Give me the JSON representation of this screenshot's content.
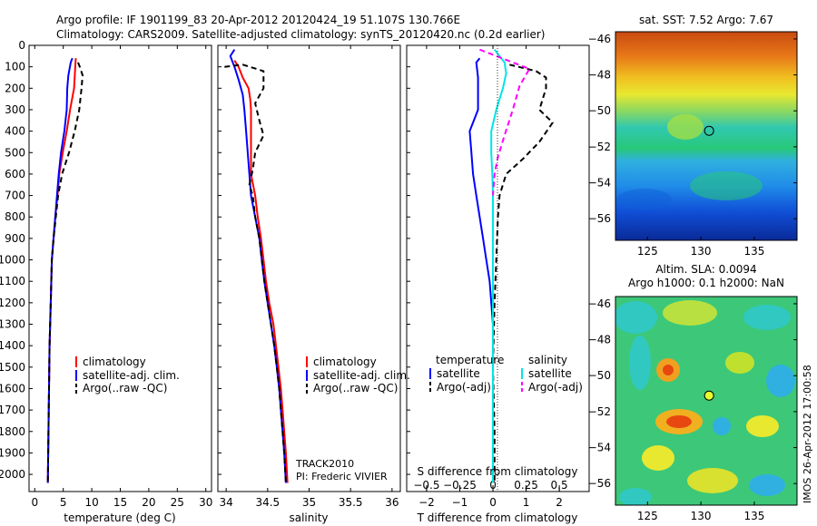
{
  "header": {
    "line1": "Argo profile: IF 1901199_83 20-Apr-2012 20120424_19 51.107S 130.766E",
    "line2": "Climatology: CARS2009. Satellite-adjusted climatology: synTS_20120420.nc (0.2d earlier)"
  },
  "colors": {
    "climatology": "#ff0000",
    "satellite": "#0000ff",
    "argo": "#000000",
    "sal_satellite": "#00e5e5",
    "sal_argo": "#ff00ff"
  },
  "chart_data": [
    {
      "type": "line",
      "xlabel": "temperature (deg C)",
      "ylabel": "",
      "xlim": [
        -1,
        31
      ],
      "ylim": [
        2080,
        0
      ],
      "xticks": [
        0,
        5,
        10,
        15,
        20,
        25,
        30
      ],
      "yticks": [
        0,
        100,
        200,
        300,
        400,
        500,
        600,
        700,
        800,
        900,
        1000,
        1100,
        1200,
        1300,
        1400,
        1500,
        1600,
        1700,
        1800,
        1900,
        2000
      ],
      "legend": [
        "climatology",
        "satellite-adj. clim.",
        "Argo(..raw -QC)"
      ],
      "series": [
        {
          "name": "climatology",
          "color": "#ff0000",
          "style": "solid",
          "points": [
            [
              7.2,
              60
            ],
            [
              7.1,
              100
            ],
            [
              6.9,
              200
            ],
            [
              6.2,
              300
            ],
            [
              5.6,
              400
            ],
            [
              4.9,
              500
            ],
            [
              4.3,
              600
            ],
            [
              4.0,
              700
            ],
            [
              3.6,
              800
            ],
            [
              3.3,
              900
            ],
            [
              3.0,
              1000
            ],
            [
              2.8,
              1200
            ],
            [
              2.6,
              1400
            ],
            [
              2.5,
              1600
            ],
            [
              2.4,
              1800
            ],
            [
              2.3,
              2040
            ]
          ]
        },
        {
          "name": "satellite-adj. clim.",
          "color": "#0000ff",
          "style": "solid",
          "points": [
            [
              6.6,
              60
            ],
            [
              6.3,
              80
            ],
            [
              5.9,
              140
            ],
            [
              5.7,
              200
            ],
            [
              5.6,
              300
            ],
            [
              5.2,
              400
            ],
            [
              4.6,
              500
            ],
            [
              4.2,
              600
            ],
            [
              3.9,
              700
            ],
            [
              3.6,
              800
            ],
            [
              3.3,
              900
            ],
            [
              3.0,
              1000
            ],
            [
              2.8,
              1200
            ],
            [
              2.6,
              1400
            ],
            [
              2.5,
              1600
            ],
            [
              2.4,
              1800
            ],
            [
              2.3,
              2040
            ]
          ]
        },
        {
          "name": "Argo(..raw -QC)",
          "color": "#000000",
          "style": "dash",
          "points": [
            [
              7.6,
              80
            ],
            [
              7.9,
              100
            ],
            [
              8.4,
              140
            ],
            [
              8.2,
              200
            ],
            [
              7.8,
              300
            ],
            [
              7.0,
              400
            ],
            [
              6.0,
              500
            ],
            [
              4.8,
              600
            ],
            [
              4.1,
              700
            ],
            [
              3.7,
              800
            ],
            [
              3.3,
              900
            ],
            [
              3.0,
              1000
            ],
            [
              2.8,
              1200
            ],
            [
              2.6,
              1400
            ],
            [
              2.5,
              1600
            ],
            [
              2.4,
              1800
            ],
            [
              2.3,
              2040
            ]
          ]
        }
      ]
    },
    {
      "type": "line",
      "xlabel": "salinity",
      "ylabel": "",
      "xlim": [
        33.9,
        36.1
      ],
      "ylim": [
        2080,
        0
      ],
      "xticks": [
        34,
        34.5,
        35,
        35.5,
        36
      ],
      "xticklabels": [
        "34",
        "34.5",
        "35",
        "35.5",
        "36"
      ],
      "legend": [
        "climatology",
        "satellite-adj. clim.",
        "Argo(..raw -QC)"
      ],
      "annotations": [
        "TRACK2010",
        "PI: Frederic VIVIER"
      ],
      "series": [
        {
          "name": "climatology",
          "color": "#ff0000",
          "style": "solid",
          "points": [
            [
              34.1,
              70
            ],
            [
              34.15,
              100
            ],
            [
              34.2,
              150
            ],
            [
              34.27,
              200
            ],
            [
              34.29,
              250
            ],
            [
              34.3,
              300
            ],
            [
              34.3,
              400
            ],
            [
              34.3,
              500
            ],
            [
              34.3,
              600
            ],
            [
              34.35,
              700
            ],
            [
              34.38,
              800
            ],
            [
              34.42,
              900
            ],
            [
              34.45,
              1000
            ],
            [
              34.48,
              1100
            ],
            [
              34.52,
              1200
            ],
            [
              34.57,
              1300
            ],
            [
              34.6,
              1400
            ],
            [
              34.63,
              1500
            ],
            [
              34.66,
              1600
            ],
            [
              34.68,
              1700
            ],
            [
              34.7,
              1800
            ],
            [
              34.72,
              1900
            ],
            [
              34.74,
              2040
            ]
          ]
        },
        {
          "name": "satellite-adj. clim.",
          "color": "#0000ff",
          "style": "solid",
          "points": [
            [
              34.1,
              20
            ],
            [
              34.05,
              50
            ],
            [
              34.1,
              100
            ],
            [
              34.15,
              160
            ],
            [
              34.2,
              230
            ],
            [
              34.22,
              300
            ],
            [
              34.24,
              400
            ],
            [
              34.26,
              500
            ],
            [
              34.28,
              600
            ],
            [
              34.3,
              700
            ],
            [
              34.35,
              800
            ],
            [
              34.4,
              900
            ],
            [
              34.43,
              1000
            ],
            [
              34.46,
              1100
            ],
            [
              34.5,
              1200
            ],
            [
              34.54,
              1300
            ],
            [
              34.58,
              1400
            ],
            [
              34.61,
              1500
            ],
            [
              34.64,
              1600
            ],
            [
              34.66,
              1700
            ],
            [
              34.68,
              1800
            ],
            [
              34.7,
              1900
            ],
            [
              34.72,
              2040
            ]
          ]
        },
        {
          "name": "Argo(..raw -QC)",
          "color": "#000000",
          "style": "dash",
          "points": [
            [
              33.98,
              100
            ],
            [
              34.2,
              90
            ],
            [
              34.45,
              120
            ],
            [
              34.45,
              200
            ],
            [
              34.35,
              270
            ],
            [
              34.4,
              350
            ],
            [
              34.45,
              420
            ],
            [
              34.35,
              500
            ],
            [
              34.32,
              580
            ],
            [
              34.28,
              650
            ],
            [
              34.32,
              700
            ],
            [
              34.35,
              800
            ],
            [
              34.4,
              900
            ],
            [
              34.43,
              1000
            ],
            [
              34.46,
              1100
            ],
            [
              34.5,
              1200
            ],
            [
              34.54,
              1300
            ],
            [
              34.58,
              1400
            ],
            [
              34.61,
              1500
            ],
            [
              34.64,
              1600
            ],
            [
              34.66,
              1700
            ],
            [
              34.68,
              1800
            ],
            [
              34.7,
              1900
            ],
            [
              34.72,
              2040
            ]
          ]
        }
      ]
    },
    {
      "type": "line",
      "xlabel": "T difference from climatology",
      "xlabel2": "S difference from climatology",
      "xlim": [
        -2.6,
        2.9
      ],
      "ylim": [
        2080,
        0
      ],
      "xticks": [
        -2,
        -1,
        0,
        1,
        2
      ],
      "xticklabels": [
        "−2",
        "−1",
        "0",
        "1",
        "2"
      ],
      "xticks2": [
        -0.5,
        -0.25,
        0,
        0.25,
        0.5
      ],
      "xticklabels2": [
        "−0.5",
        "−0.25",
        "0",
        "0.25",
        "0.5"
      ],
      "legend_headers": [
        "temperature",
        "salinity"
      ],
      "legend": [
        "satellite",
        "Argo(-adj)",
        "satellite",
        "Argo(-adj)"
      ],
      "series": [
        {
          "name": "satellite",
          "group": "temperature",
          "color": "#0000ff",
          "style": "solid",
          "points": [
            [
              -0.4,
              60
            ],
            [
              -0.5,
              80
            ],
            [
              -0.45,
              150
            ],
            [
              -0.45,
              300
            ],
            [
              -0.7,
              400
            ],
            [
              -0.65,
              500
            ],
            [
              -0.6,
              600
            ],
            [
              -0.5,
              700
            ],
            [
              -0.4,
              800
            ],
            [
              -0.3,
              900
            ],
            [
              -0.2,
              1000
            ],
            [
              -0.1,
              1100
            ],
            [
              0,
              1300
            ],
            [
              0,
              2040
            ]
          ]
        },
        {
          "name": "Argo(-adj)",
          "group": "temperature",
          "color": "#000000",
          "style": "dash",
          "points": [
            [
              0.5,
              90
            ],
            [
              1.3,
              120
            ],
            [
              1.6,
              150
            ],
            [
              1.6,
              200
            ],
            [
              1.4,
              300
            ],
            [
              1.8,
              360
            ],
            [
              1.4,
              450
            ],
            [
              0.9,
              530
            ],
            [
              0.4,
              600
            ],
            [
              0.2,
              700
            ],
            [
              0.15,
              800
            ],
            [
              0.1,
              1000
            ],
            [
              0.05,
              1200
            ],
            [
              0,
              1500
            ],
            [
              0.05,
              1800
            ],
            [
              0.05,
              2040
            ]
          ]
        },
        {
          "name": "satellite",
          "group": "salinity",
          "color": "#00e5e5",
          "style": "solid",
          "points": [
            [
              0.05,
              20
            ],
            [
              0.35,
              80
            ],
            [
              0.4,
              130
            ],
            [
              0.3,
              200
            ],
            [
              0.1,
              300
            ],
            [
              -0.05,
              400
            ],
            [
              -0.05,
              500
            ],
            [
              -0.02,
              600
            ],
            [
              0,
              700
            ],
            [
              0,
              900
            ],
            [
              0,
              1200
            ],
            [
              0,
              1500
            ],
            [
              0,
              2040
            ]
          ]
        },
        {
          "name": "Argo(-adj)",
          "group": "salinity",
          "color": "#ff00ff",
          "style": "dash",
          "points": [
            [
              -0.4,
              20
            ],
            [
              1.1,
              110
            ],
            [
              0.8,
              190
            ],
            [
              0.6,
              300
            ],
            [
              0.35,
              420
            ],
            [
              0.15,
              520
            ],
            [
              0.05,
              600
            ],
            [
              0,
              700
            ]
          ]
        }
      ]
    },
    {
      "type": "heatmap",
      "title": "sat. SST: 7.52 Argo: 7.67",
      "xlim": [
        122,
        139
      ],
      "ylim": [
        -57.2,
        -45.6
      ],
      "xticks": [
        125,
        130,
        135
      ],
      "yticks": [
        -46,
        -48,
        -50,
        -52,
        -54,
        -56
      ],
      "marker": {
        "lon": 130.766,
        "lat": -51.107
      }
    },
    {
      "type": "heatmap",
      "title": "Altim. SLA: 0.0094",
      "subtitle": "Argo h1000: 0.1 h2000: NaN",
      "xlim": [
        122,
        139
      ],
      "ylim": [
        -57.2,
        -45.6
      ],
      "xticks": [
        125,
        130,
        135
      ],
      "yticks": [
        -46,
        -48,
        -50,
        -52,
        -54,
        -56
      ],
      "marker": {
        "lon": 130.766,
        "lat": -51.107
      },
      "side_label": "IMOS 26-Apr-2012 17:00:58"
    }
  ]
}
